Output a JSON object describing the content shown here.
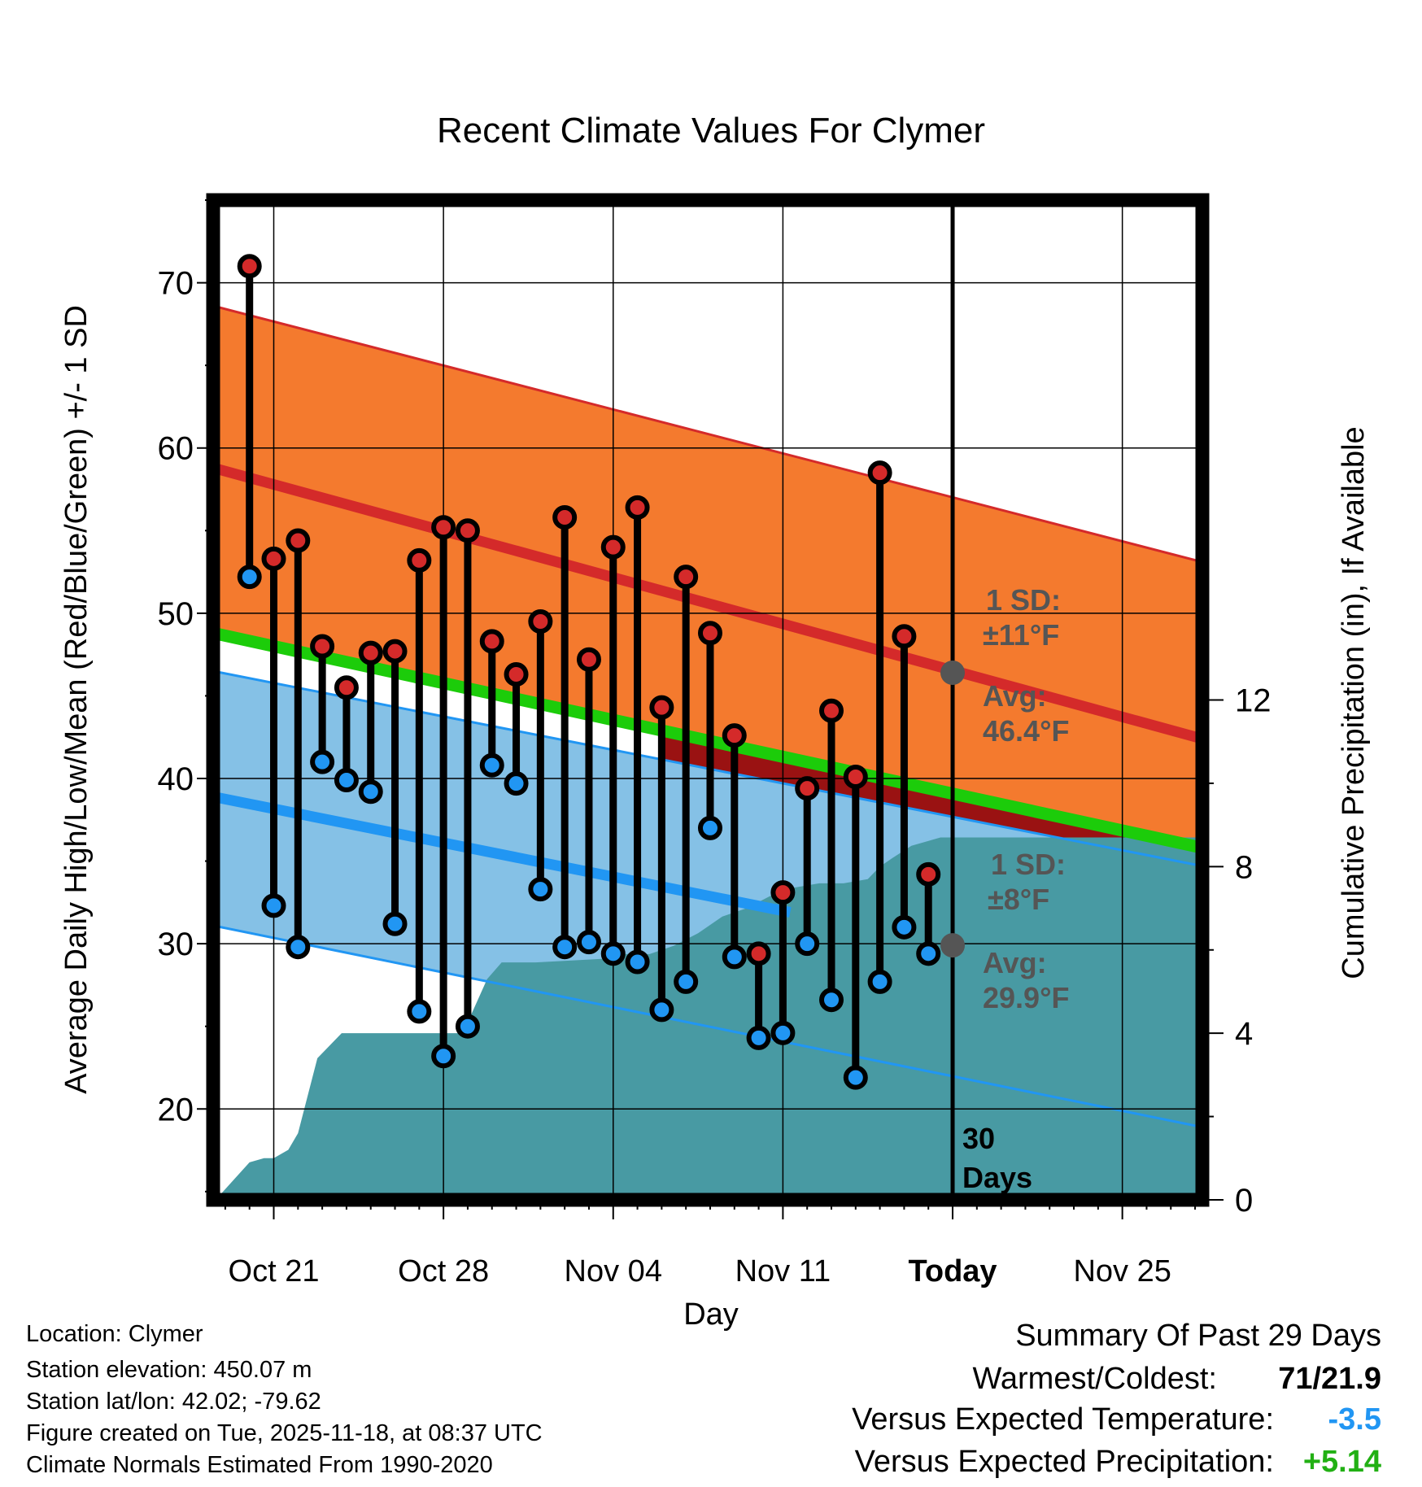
{
  "chart_data": {
    "type": "line",
    "title": "Recent Climate Values For Clymer",
    "xlabel": "Day",
    "ylabel": "Average Daily High/Low/Mean (Red/Blue/Green) +/- 1 SD",
    "y2label": "Cumulative Precipitation (in), If Available",
    "xlim": [
      -0.5,
      40.3
    ],
    "ylim": [
      14.5,
      75
    ],
    "y2lim": [
      0,
      24
    ],
    "yticks": [
      20,
      30,
      40,
      50,
      60,
      70
    ],
    "y2ticks": [
      0,
      4,
      8,
      12
    ],
    "xticks": [
      {
        "x": 2,
        "label": "Oct 21",
        "bold": false
      },
      {
        "x": 9,
        "label": "Oct 28",
        "bold": false
      },
      {
        "x": 16,
        "label": "Nov 04",
        "bold": false
      },
      {
        "x": 23,
        "label": "Nov 11",
        "bold": false
      },
      {
        "x": 30,
        "label": "Today",
        "bold": true
      },
      {
        "x": 37,
        "label": "Nov 25",
        "bold": false
      }
    ],
    "today_x": 30,
    "today_label": "30\nDays",
    "normals": {
      "x": [
        -0.5,
        40.3
      ],
      "high_mean": [
        58.8,
        42.4
      ],
      "high_upper": [
        68.6,
        53.1
      ],
      "low_mean": [
        38.9,
        26.9
      ],
      "low_upper": [
        46.5,
        34.7
      ],
      "low_lower": [
        31.1,
        18.9
      ],
      "mean": [
        48.8,
        35.8
      ]
    },
    "annotations": {
      "high_sd": "1 SD:",
      "high_sd_value": "±11°F",
      "high_avg": "Avg:",
      "high_avg_value": "46.4°F",
      "low_sd": "1 SD:",
      "low_sd_value": "±8°F",
      "low_avg": "Avg:",
      "low_avg_value": "29.9°F"
    },
    "series": [
      {
        "name": "High",
        "color": "#d42a2a",
        "x": [
          1,
          2,
          3,
          4,
          5,
          6,
          7,
          8,
          9,
          10,
          11,
          12,
          13,
          14,
          15,
          16,
          17,
          18,
          19,
          20,
          21,
          22,
          23,
          24,
          25,
          26,
          27,
          28,
          29
        ],
        "values": [
          71.0,
          53.3,
          54.4,
          48.0,
          45.5,
          47.6,
          47.7,
          53.2,
          55.2,
          55.0,
          48.3,
          46.3,
          49.5,
          55.8,
          47.2,
          54.0,
          56.4,
          44.3,
          52.2,
          48.8,
          42.6,
          29.4,
          33.1,
          39.4,
          44.1,
          40.1,
          58.5,
          48.6,
          34.2
        ]
      },
      {
        "name": "Low",
        "color": "#2196f3",
        "x": [
          1,
          2,
          3,
          4,
          5,
          6,
          7,
          8,
          9,
          10,
          11,
          12,
          13,
          14,
          15,
          16,
          17,
          18,
          19,
          20,
          21,
          22,
          23,
          24,
          25,
          26,
          27,
          28,
          29
        ],
        "values": [
          52.2,
          32.3,
          29.8,
          41.0,
          39.9,
          39.2,
          31.2,
          25.9,
          23.2,
          25.0,
          40.8,
          39.7,
          33.3,
          29.8,
          30.1,
          29.4,
          28.9,
          26.0,
          27.7,
          37.0,
          29.2,
          24.3,
          24.6,
          30.0,
          26.6,
          21.9,
          27.7,
          31.0,
          29.4
        ]
      },
      {
        "name": "Cumulative Precipitation (in)",
        "color": "#489aa3",
        "x": [
          -0.4,
          1.0,
          1.6,
          2.0,
          2.6,
          3.0,
          3.8,
          4.8,
          7.8,
          8.8,
          9.8,
          10.8,
          11.4,
          11.8,
          12.8,
          16.0,
          16.5,
          17.5,
          18.5,
          19.5,
          20.5,
          21.5,
          22.5,
          23.5,
          24.5,
          25.5,
          26.5,
          27.0,
          27.5,
          28.3,
          29.5,
          30.0,
          40.3
        ],
        "values": [
          0,
          0.9,
          1.0,
          1.0,
          1.2,
          1.6,
          3.4,
          4.0,
          4.0,
          4.0,
          4.0,
          5.3,
          5.7,
          5.7,
          5.7,
          5.8,
          5.9,
          5.9,
          6.1,
          6.4,
          6.8,
          7.0,
          7.3,
          7.5,
          7.6,
          7.6,
          7.7,
          8.0,
          8.2,
          8.5,
          8.7,
          8.7,
          8.7
        ]
      }
    ]
  },
  "footer": {
    "location": "Location: Clymer",
    "elevation": "Station elevation: 450.07 m",
    "latlon": "Station lat/lon: 42.02; -79.62",
    "created": "Figure created on Tue, 2025-11-18, at 08:37 UTC",
    "normals": "Climate Normals Estimated From 1990-2020"
  },
  "summary": {
    "title": "Summary Of Past 29 Days",
    "warm_cold_label": "Warmest/Coldest:",
    "warm_cold_value": "71/21.9",
    "temp_label": "Versus Expected Temperature:",
    "temp_value": "-3.5",
    "temp_color": "#2196f3",
    "precip_label": "Versus Expected Precipitation:",
    "precip_value": "+5.14",
    "precip_color": "#22b014"
  }
}
